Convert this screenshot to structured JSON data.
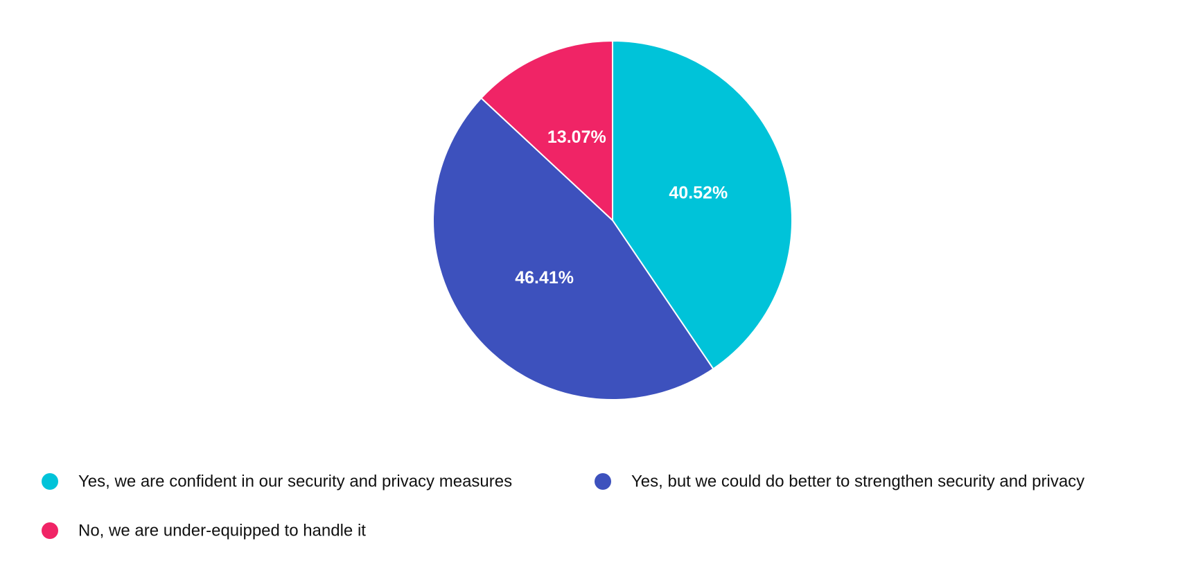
{
  "chart_data": {
    "type": "pie",
    "categories": [
      "Yes, we are confident in our security and privacy measures",
      "Yes, but we could do better to strengthen security and privacy",
      "No, we are under-equipped to handle it"
    ],
    "values": [
      40.52,
      46.41,
      13.07
    ],
    "value_labels": [
      "40.52%",
      "46.41%",
      "13.07%"
    ],
    "colors": [
      "#00c3d9",
      "#3d51bd",
      "#f02466"
    ],
    "legend": "bottom"
  }
}
